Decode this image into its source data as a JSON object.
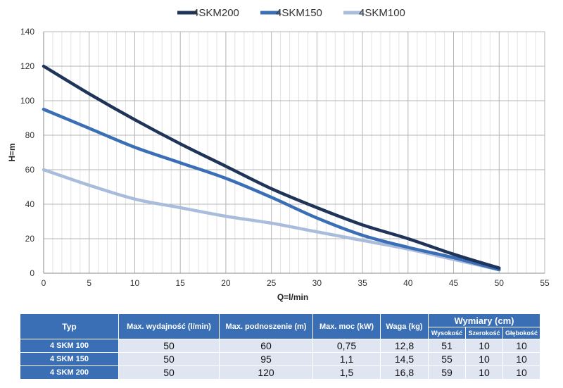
{
  "chart_data": {
    "type": "line",
    "xlabel": "Q=l/min",
    "ylabel": "H=m",
    "xlim": [
      0,
      55
    ],
    "ylim": [
      0,
      140
    ],
    "x_ticks": [
      0,
      5,
      10,
      15,
      20,
      25,
      30,
      35,
      40,
      45,
      50,
      55
    ],
    "y_ticks": [
      0,
      20,
      40,
      60,
      80,
      100,
      120,
      140
    ],
    "grid": true,
    "legend_position": "top",
    "series": [
      {
        "name": "4SKM200",
        "color": "#1f3458",
        "x": [
          0,
          5,
          10,
          15,
          20,
          25,
          30,
          35,
          40,
          45,
          50
        ],
        "y": [
          120,
          104,
          89,
          75,
          62,
          49,
          38,
          28,
          20,
          11,
          3
        ]
      },
      {
        "name": "4SKM150",
        "color": "#3a6fb6",
        "x": [
          0,
          5,
          10,
          15,
          20,
          25,
          30,
          35,
          40,
          45,
          50
        ],
        "y": [
          95,
          84,
          73,
          64,
          55,
          44,
          32,
          22,
          15,
          9,
          2
        ]
      },
      {
        "name": "4SKM100",
        "color": "#a9bcdb",
        "x": [
          0,
          5,
          10,
          15,
          20,
          25,
          30,
          35,
          40,
          45,
          50
        ],
        "y": [
          60,
          51,
          43,
          38,
          33,
          29,
          24,
          19,
          14,
          8,
          2
        ]
      }
    ]
  },
  "table": {
    "headers": {
      "typ": "Typ",
      "wydajnosc": "Max. wydajność (l/min)",
      "podnoszenie": "Max. podnoszenie (m)",
      "moc": "Max. moc (kW)",
      "waga": "Waga (kg)",
      "wymiary": "Wymiary (cm)",
      "wysokosc": "Wysokość",
      "szerokosc": "Szerokość",
      "glebokosc": "Głębokość"
    },
    "rows": [
      {
        "typ": "4 SKM 100",
        "wydajnosc": "50",
        "podnoszenie": "60",
        "moc": "0,75",
        "waga": "12,8",
        "wysokosc": "51",
        "szerokosc": "10",
        "glebokosc": "10"
      },
      {
        "typ": "4 SKM 150",
        "wydajnosc": "50",
        "podnoszenie": "95",
        "moc": "1,1",
        "waga": "14,5",
        "wysokosc": "55",
        "szerokosc": "10",
        "glebokosc": "10"
      },
      {
        "typ": "4 SKM 200",
        "wydajnosc": "50",
        "podnoszenie": "120",
        "moc": "1,5",
        "waga": "16,8",
        "wysokosc": "59",
        "szerokosc": "10",
        "glebokosc": "10"
      }
    ]
  }
}
